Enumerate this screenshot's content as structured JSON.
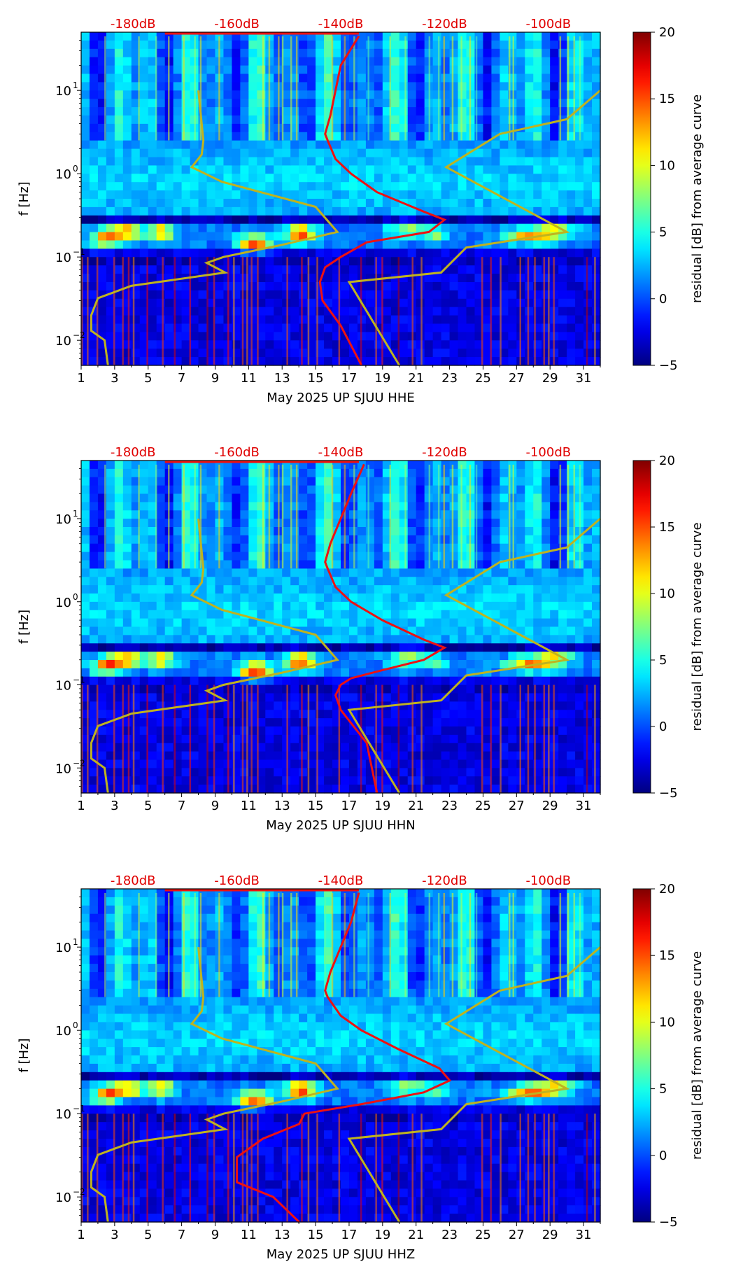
{
  "figure": {
    "colorbar_label": "residual [dB] from average curve",
    "colorbar_ticks": [
      "20",
      "15",
      "10",
      "5",
      "0",
      "−5"
    ],
    "colormap": [
      "#00007f",
      "#0000ff",
      "#00ffff",
      "#ffff00",
      "#ff0000",
      "#7f0000"
    ],
    "ylabel": "f [Hz]",
    "ytick_labels": [
      "10",
      "10",
      "10"
    ],
    "ytick_exponents": [
      "1",
      "0",
      "−1",
      "−2"
    ],
    "xtick_labels": [
      "1",
      "3",
      "5",
      "7",
      "9",
      "11",
      "13",
      "15",
      "17",
      "19",
      "21",
      "23",
      "25",
      "27",
      "29",
      "31"
    ],
    "db_labels": [
      "-180dB",
      "-160dB",
      "-140dB",
      "-120dB",
      "-100dB"
    ],
    "noise_model_color": "#bfb31f",
    "psd_curve_color": "#ee1111"
  },
  "chart_data": [
    {
      "type": "heatmap",
      "title": "",
      "xlabel": "May 2025 UP SJUU  HHE",
      "ylabel": "f [Hz]",
      "x_range_days": [
        1,
        32
      ],
      "y_range_hz": [
        0.005,
        50
      ],
      "y_scale": "log",
      "z_range_db": [
        -5,
        20
      ],
      "colorbar_label": "residual [dB] from average curve",
      "overlay_db_axis": {
        "labels": [
          "-180dB",
          "-160dB",
          "-140dB",
          "-120dB",
          "-100dB"
        ],
        "values": [
          -180,
          -160,
          -140,
          -120,
          -100
        ]
      },
      "psd_curve_db": [
        [
          -136.5,
          45
        ],
        [
          -140,
          20
        ],
        [
          -141,
          10
        ],
        [
          -142,
          5
        ],
        [
          -143,
          3
        ],
        [
          -142.5,
          2.5
        ],
        [
          -141,
          1.5
        ],
        [
          -138,
          1.0
        ],
        [
          -133,
          0.6
        ],
        [
          -124,
          0.35
        ],
        [
          -120,
          0.28
        ],
        [
          -123,
          0.2
        ],
        [
          -135,
          0.15
        ],
        [
          -140,
          0.1
        ],
        [
          -143,
          0.075
        ],
        [
          -144,
          0.05
        ],
        [
          -143.5,
          0.03
        ],
        [
          -140,
          0.015
        ],
        [
          -136,
          0.005
        ]
      ]
    },
    {
      "type": "heatmap",
      "title": "",
      "xlabel": "May 2025 UP SJUU  HHN",
      "ylabel": "f [Hz]",
      "x_range_days": [
        1,
        32
      ],
      "y_range_hz": [
        0.005,
        50
      ],
      "y_scale": "log",
      "z_range_db": [
        -5,
        20
      ],
      "colorbar_label": "residual [dB] from average curve",
      "overlay_db_axis": {
        "labels": [
          "-180dB",
          "-160dB",
          "-140dB",
          "-120dB",
          "-100dB"
        ],
        "values": [
          -180,
          -160,
          -140,
          -120,
          -100
        ]
      },
      "psd_curve_db": [
        [
          -135.5,
          45
        ],
        [
          -138,
          20
        ],
        [
          -140,
          10
        ],
        [
          -142,
          5
        ],
        [
          -143,
          3
        ],
        [
          -142.5,
          2.5
        ],
        [
          -141,
          1.5
        ],
        [
          -138,
          1.0
        ],
        [
          -132,
          0.6
        ],
        [
          -124,
          0.35
        ],
        [
          -120,
          0.28
        ],
        [
          -124,
          0.2
        ],
        [
          -132,
          0.15
        ],
        [
          -138,
          0.12
        ],
        [
          -140,
          0.1
        ],
        [
          -141,
          0.075
        ],
        [
          -140,
          0.05
        ],
        [
          -135,
          0.02
        ],
        [
          -133,
          0.005
        ]
      ]
    },
    {
      "type": "heatmap",
      "title": "",
      "xlabel": "May 2025 UP SJUU  HHZ",
      "ylabel": "f [Hz]",
      "x_range_days": [
        1,
        32
      ],
      "y_range_hz": [
        0.005,
        50
      ],
      "y_scale": "log",
      "z_range_db": [
        -5,
        20
      ],
      "colorbar_label": "residual [dB] from average curve",
      "overlay_db_axis": {
        "labels": [
          "-180dB",
          "-160dB",
          "-140dB",
          "-120dB",
          "-100dB"
        ],
        "values": [
          -180,
          -160,
          -140,
          -120,
          -100
        ]
      },
      "psd_curve_db": [
        [
          -136.5,
          45
        ],
        [
          -138,
          20
        ],
        [
          -140,
          10
        ],
        [
          -142,
          5
        ],
        [
          -143,
          3
        ],
        [
          -142.5,
          2.5
        ],
        [
          -140,
          1.5
        ],
        [
          -136,
          1.0
        ],
        [
          -129,
          0.6
        ],
        [
          -121,
          0.35
        ],
        [
          -119,
          0.25
        ],
        [
          -124,
          0.18
        ],
        [
          -136,
          0.13
        ],
        [
          -147,
          0.1
        ],
        [
          -148,
          0.075
        ],
        [
          -155,
          0.05
        ],
        [
          -160,
          0.03
        ],
        [
          -160,
          0.015
        ],
        [
          -153,
          0.01
        ],
        [
          -148,
          0.005
        ]
      ]
    }
  ]
}
